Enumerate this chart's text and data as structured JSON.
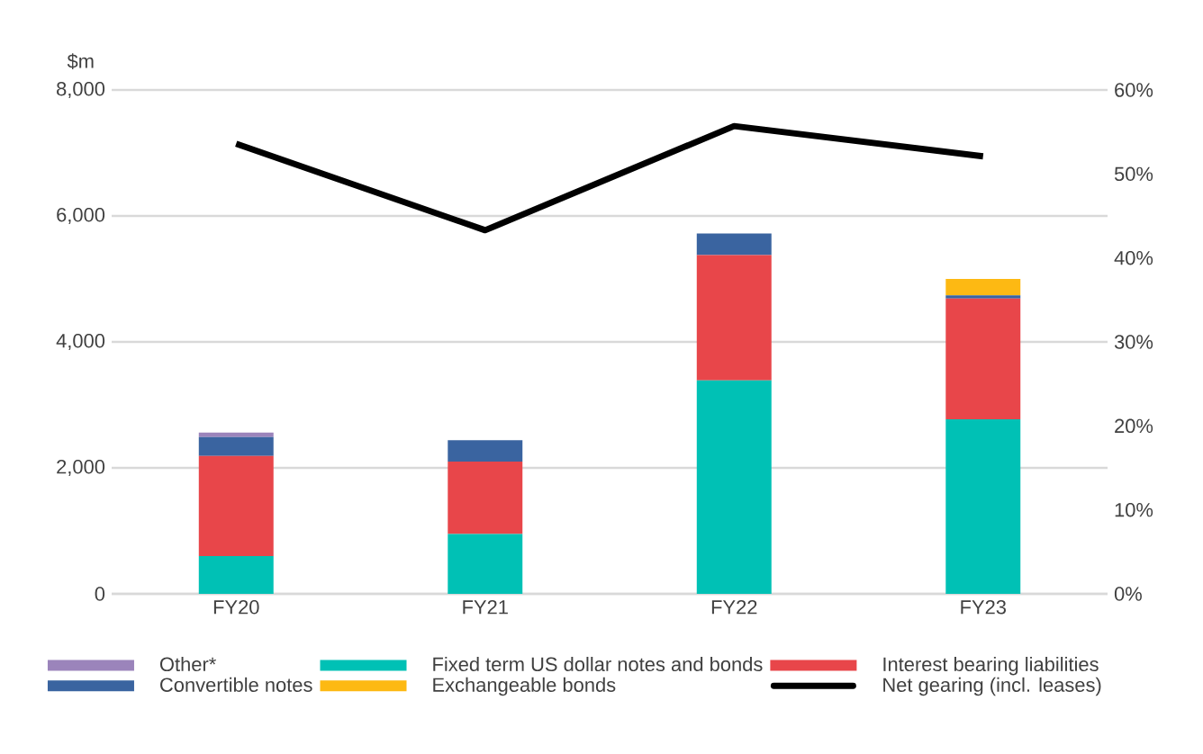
{
  "chart_data": {
    "type": "bar",
    "stacked": true,
    "ylabel": "$m",
    "categories": [
      "FY20",
      "FY21",
      "FY22",
      "FY23"
    ],
    "series": [
      {
        "name": "Fixed term US dollar notes and bonds",
        "color": "#00c1b5",
        "values": [
          600,
          950,
          3390,
          2770
        ]
      },
      {
        "name": "Interest bearing liabilities",
        "color": "#e8464a",
        "values": [
          1590,
          1150,
          1990,
          1920
        ]
      },
      {
        "name": "Convertible notes",
        "color": "#3a64a0",
        "values": [
          300,
          340,
          340,
          50
        ]
      },
      {
        "name": "Other*",
        "color": "#9b84bb",
        "values": [
          70,
          0,
          0,
          0
        ]
      },
      {
        "name": "Exchangeable bonds",
        "color": "#fdb913",
        "values": [
          0,
          0,
          0,
          260
        ]
      },
      {
        "name": "Net gearing (incl. leases)",
        "type": "line",
        "axis": "y2",
        "color": "#000000",
        "values": [
          53.6,
          43.3,
          55.7,
          52.1
        ]
      }
    ],
    "ylim": [
      0,
      8000
    ],
    "yticks": [
      {
        "value": 0,
        "label": "0"
      },
      {
        "value": 2000,
        "label": "2,000"
      },
      {
        "value": 4000,
        "label": "4,000"
      },
      {
        "value": 6000,
        "label": "6,000"
      },
      {
        "value": 8000,
        "label": "8,000"
      }
    ],
    "y2lim": [
      0,
      60
    ],
    "y2ticks": [
      {
        "value": 0,
        "label": "0%"
      },
      {
        "value": 10,
        "label": "10%"
      },
      {
        "value": 20,
        "label": "20%"
      },
      {
        "value": 30,
        "label": "30%"
      },
      {
        "value": 40,
        "label": "40%"
      },
      {
        "value": 50,
        "label": "50%"
      },
      {
        "value": 60,
        "label": "60%"
      }
    ],
    "grid": "y",
    "legend": "bottom"
  }
}
